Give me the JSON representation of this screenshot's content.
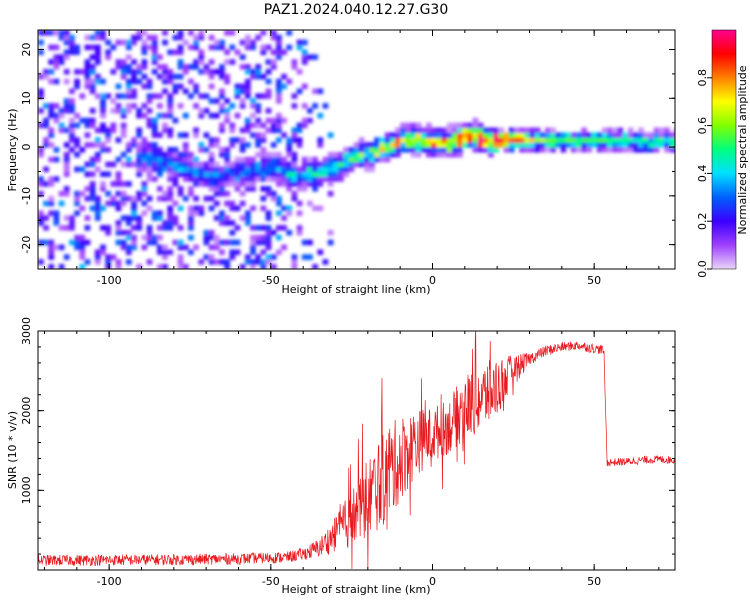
{
  "title": "PAZ1.2024.040.12.27.G30",
  "chart_data": [
    {
      "type": "heatmap",
      "xlabel": "Height of straight line (km)",
      "ylabel": "Frequency (Hz)",
      "xlim": [
        -122,
        75
      ],
      "ylim": [
        -25,
        24
      ],
      "xticks": [
        -100,
        -50,
        0,
        50
      ],
      "yticks": [
        -20,
        -10,
        0,
        10,
        20
      ],
      "colorbar": {
        "label": "Normalized spectral amplitude",
        "range": [
          0,
          1
        ],
        "ticks": [
          0.0,
          0.2,
          0.4,
          0.6,
          0.8
        ],
        "colormap": [
          "#e8d6f8",
          "#a040ff",
          "#3a00ff",
          "#0060ff",
          "#00e0ff",
          "#00ff80",
          "#80ff00",
          "#ffff00",
          "#ff8000",
          "#ff0000",
          "#ff0090"
        ]
      },
      "ridge": {
        "x": [
          -88,
          -80,
          -70,
          -60,
          -50,
          -42,
          -36,
          -30,
          -25,
          -20,
          -15,
          -10,
          -5,
          0,
          5,
          10,
          15,
          20,
          25,
          35,
          45,
          55,
          65,
          75
        ],
        "freq": [
          -2,
          -4,
          -6,
          -5,
          -4,
          -6,
          -5,
          -4,
          -2,
          -1,
          0,
          1.5,
          1.5,
          1,
          1,
          2.5,
          1.5,
          1.5,
          1.5,
          1.5,
          1.5,
          1.5,
          1.2,
          1.2
        ],
        "amplitude": [
          0.35,
          0.35,
          0.3,
          0.3,
          0.35,
          0.45,
          0.45,
          0.5,
          0.55,
          0.6,
          0.65,
          0.8,
          0.85,
          0.85,
          0.8,
          0.9,
          0.9,
          0.95,
          0.9,
          0.6,
          0.55,
          0.55,
          0.5,
          0.5
        ]
      }
    },
    {
      "type": "line",
      "xlabel": "Height of straight line (km)",
      "ylabel": "SNR (10 * v/v)",
      "xlim": [
        -122,
        75
      ],
      "ylim": [
        0,
        3000
      ],
      "xticks": [
        -100,
        -50,
        0,
        50
      ],
      "yticks": [
        1000,
        2000,
        3000
      ],
      "color": "#e8191e",
      "envelope": {
        "x": [
          -122,
          -80,
          -60,
          -45,
          -40,
          -35,
          -30,
          -25,
          -20,
          -15,
          -10,
          -5,
          0,
          5,
          10,
          15,
          20,
          25,
          30,
          35,
          40,
          45,
          50,
          53,
          54,
          60,
          65,
          70,
          75
        ],
        "y": [
          120,
          130,
          140,
          160,
          200,
          280,
          450,
          650,
          900,
          1150,
          1400,
          1600,
          1700,
          1800,
          2050,
          2150,
          2300,
          2500,
          2650,
          2750,
          2800,
          2820,
          2780,
          2760,
          1350,
          1360,
          1380,
          1390,
          1380
        ],
        "amp": [
          70,
          70,
          70,
          70,
          80,
          120,
          220,
          380,
          520,
          600,
          550,
          420,
          350,
          350,
          420,
          430,
          380,
          200,
          80,
          70,
          60,
          60,
          60,
          60,
          50,
          50,
          50,
          50,
          50
        ]
      }
    }
  ]
}
